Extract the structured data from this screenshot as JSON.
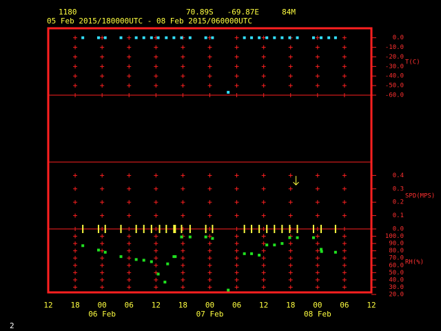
{
  "header": {
    "station": "1180",
    "location": "70.89S   -69.87E     84M",
    "period": "05 Feb 2015/180000UTC - 08 Feb 2015/060000UTC"
  },
  "footer": "2",
  "chart_data": {
    "type": "meteogram",
    "xlim": [
      0,
      72
    ],
    "xticks": [
      {
        "value": 0,
        "label": "12"
      },
      {
        "value": 6,
        "label": "18"
      },
      {
        "value": 12,
        "label": "00"
      },
      {
        "value": 18,
        "label": "06"
      },
      {
        "value": 24,
        "label": "12"
      },
      {
        "value": 30,
        "label": "18"
      },
      {
        "value": 36,
        "label": "00"
      },
      {
        "value": 42,
        "label": "06"
      },
      {
        "value": 48,
        "label": "12"
      },
      {
        "value": 54,
        "label": "18"
      },
      {
        "value": 60,
        "label": "00"
      },
      {
        "value": 66,
        "label": "06"
      },
      {
        "value": 72,
        "label": "12"
      }
    ],
    "date_labels": [
      {
        "value": 12,
        "label": "06 Feb"
      },
      {
        "value": 36,
        "label": "07 Feb"
      },
      {
        "value": 60,
        "label": "08 Feb"
      }
    ],
    "panels": [
      {
        "label": "T(C)",
        "ylim": [
          -60,
          7
        ],
        "yticks": [
          {
            "value": 0,
            "label": "0.0"
          },
          {
            "value": -10,
            "label": "-10.0"
          },
          {
            "value": -20,
            "label": "-20.0"
          },
          {
            "value": -30,
            "label": "-30.0"
          },
          {
            "value": -40,
            "label": "-40.0"
          },
          {
            "value": -50,
            "label": "-50.0"
          },
          {
            "value": -60,
            "label": "-60.0"
          }
        ],
        "series": {
          "color": "#33e0ff",
          "x": [
            7.7,
            11.2,
            12.7,
            16.2,
            19.6,
            21.3,
            23.0,
            24.5,
            26.3,
            28.0,
            29.7,
            31.6,
            35.1,
            36.6,
            40.1,
            43.7,
            45.3,
            47.0,
            48.7,
            50.4,
            52.1,
            53.8,
            55.5,
            59.1,
            60.8,
            62.5,
            64.0
          ],
          "values": [
            0,
            0,
            0,
            0,
            0,
            0,
            0,
            0,
            0,
            0,
            0,
            0,
            0,
            0,
            -57,
            0,
            0,
            0,
            0,
            0,
            0,
            0,
            0,
            0,
            0,
            0,
            0
          ]
        }
      },
      {
        "label": "SPD(MPS)",
        "ylim": [
          0,
          0.5
        ],
        "yticks": [
          0.4,
          0.3,
          0.2,
          0.1,
          {
            "value": 0,
            "label": "0.0"
          }
        ],
        "series": {
          "color": "#ffff40",
          "x": [
            7.7,
            11.2,
            12.7,
            16.2,
            19.6,
            21.3,
            23.0,
            24.8,
            26.3,
            28.0,
            28.3,
            29.7,
            31.6,
            35.1,
            36.6,
            43.7,
            45.3,
            47.0,
            48.7,
            50.4,
            52.1,
            53.8,
            55.2,
            55.5,
            59.1,
            60.8,
            64.0
          ],
          "values": [
            0,
            0,
            0,
            0,
            0,
            0,
            0,
            0,
            0,
            0,
            0,
            0,
            0,
            0,
            0,
            0,
            0,
            0,
            0,
            0,
            0,
            0,
            0.36,
            0,
            0,
            0,
            0
          ]
        }
      },
      {
        "label": "RH(%)",
        "ylim": [
          20,
          110
        ],
        "yticks": [
          {
            "value": 100,
            "label": "100.0"
          },
          {
            "value": 90,
            "label": "90.0"
          },
          {
            "value": 80,
            "label": "80.0"
          },
          {
            "value": 70,
            "label": "70.0"
          },
          {
            "value": 60,
            "label": "60.0"
          },
          {
            "value": 50,
            "label": "50.0"
          },
          {
            "value": 40,
            "label": "40.0"
          },
          {
            "value": 30,
            "label": "30.0"
          },
          {
            "value": 20,
            "label": "20.0"
          }
        ],
        "series": {
          "color": "#20e020",
          "x": [
            7.7,
            11.2,
            12.7,
            16.2,
            19.6,
            21.3,
            23.0,
            24.5,
            26.0,
            26.6,
            28.0,
            28.3,
            29.7,
            31.6,
            35.1,
            36.6,
            40.1,
            43.7,
            45.3,
            47.0,
            48.7,
            50.4,
            52.1,
            53.8,
            55.5,
            59.1,
            60.8,
            60.9,
            64.0
          ],
          "values": [
            87,
            81,
            78,
            72,
            68,
            67,
            65,
            48,
            37,
            62,
            72,
            72,
            99,
            99,
            99,
            97,
            26,
            76,
            76,
            74,
            88,
            88,
            90,
            98,
            98,
            98,
            82,
            79,
            78
          ]
        }
      }
    ]
  }
}
